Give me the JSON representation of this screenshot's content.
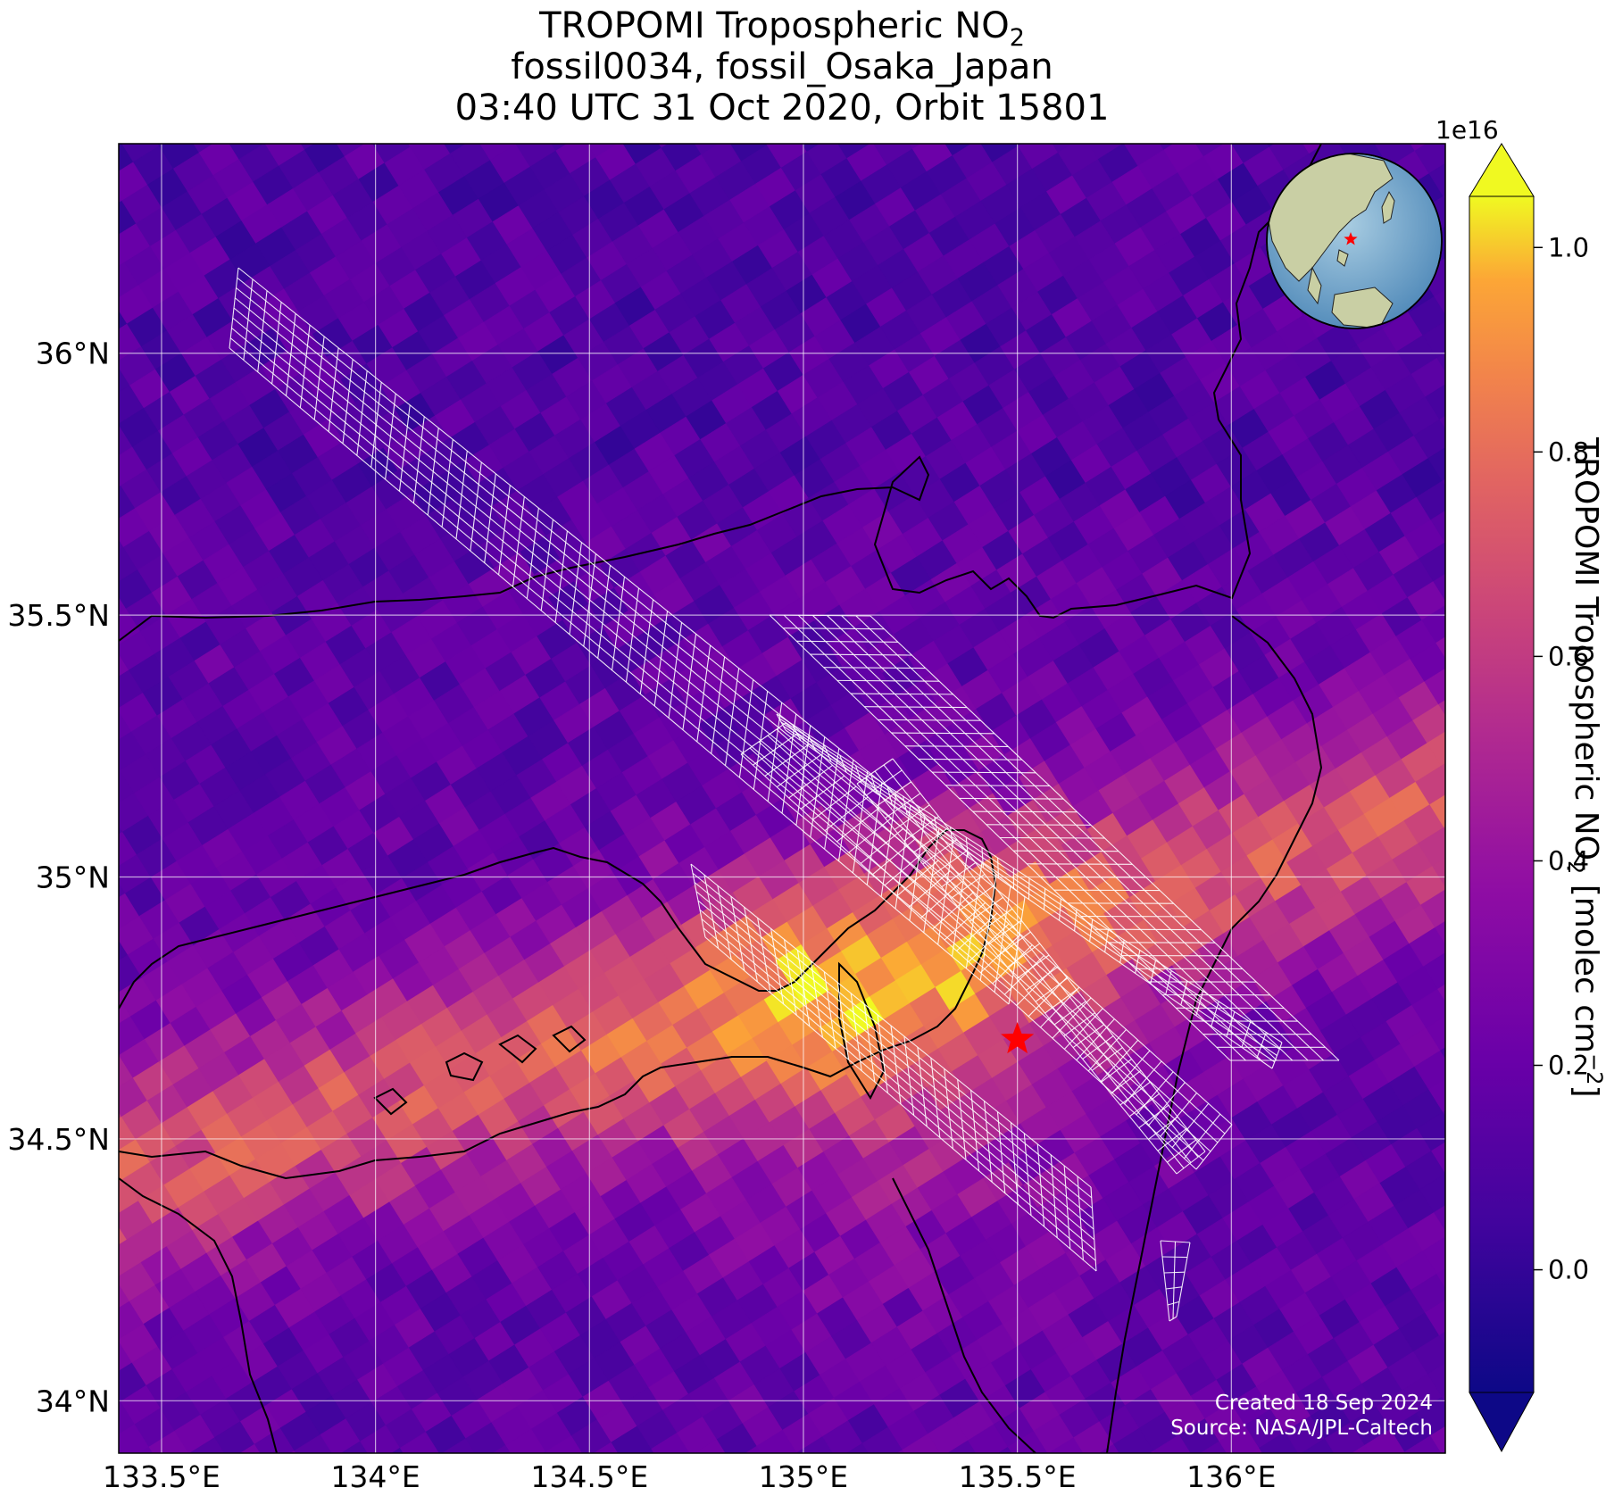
{
  "title": {
    "line1_prefix": "TROPOMI Tropospheric NO",
    "line1_sub": "2",
    "line2": "fossil0034, fossil_Osaka_Japan",
    "line3": "03:40 UTC 31 Oct 2020, Orbit 15801"
  },
  "map": {
    "lon_range": [
      133.4,
      136.5
    ],
    "lat_range": [
      33.9,
      36.4
    ],
    "x_ticks": [
      {
        "value": 133.5,
        "label": "133.5°E"
      },
      {
        "value": 134.0,
        "label": "134°E"
      },
      {
        "value": 134.5,
        "label": "134.5°E"
      },
      {
        "value": 135.0,
        "label": "135°E"
      },
      {
        "value": 135.5,
        "label": "135.5°E"
      },
      {
        "value": 136.0,
        "label": "136°E"
      }
    ],
    "y_ticks": [
      {
        "value": 34.0,
        "label": "34°N"
      },
      {
        "value": 34.5,
        "label": "34.5°N"
      },
      {
        "value": 35.0,
        "label": "35°N"
      },
      {
        "value": 35.5,
        "label": "35.5°N"
      },
      {
        "value": 36.0,
        "label": "36°N"
      }
    ],
    "gridlines": true,
    "site_marker": {
      "lon": 135.5,
      "lat": 34.69,
      "symbol": "star",
      "color": "#ff0000"
    },
    "inset": "globe-icon",
    "colormap": "plasma",
    "hotspot_band": {
      "from": [
        133.4,
        34.45
      ],
      "to": [
        136.5,
        35.15
      ],
      "peak": [
        135.15,
        34.65
      ]
    }
  },
  "colorbar": {
    "label_prefix": "TROPOMI Tropospheric NO",
    "label_sub": "2",
    "label_suffix": " [molec cm",
    "label_sup": "−2",
    "label_close": "]",
    "exponent": "1e16",
    "range": [
      -0.12,
      1.05
    ],
    "ticks": [
      {
        "value": 0.0,
        "label": "0.0"
      },
      {
        "value": 0.2,
        "label": "0.2"
      },
      {
        "value": 0.4,
        "label": "0.4"
      },
      {
        "value": 0.6,
        "label": "0.6"
      },
      {
        "value": 0.8,
        "label": "0.8"
      },
      {
        "value": 1.0,
        "label": "1.0"
      }
    ],
    "extend": "both"
  },
  "credit": {
    "line1": "Created 18 Sep 2024",
    "line2": "Source: NASA/JPL-Caltech"
  }
}
